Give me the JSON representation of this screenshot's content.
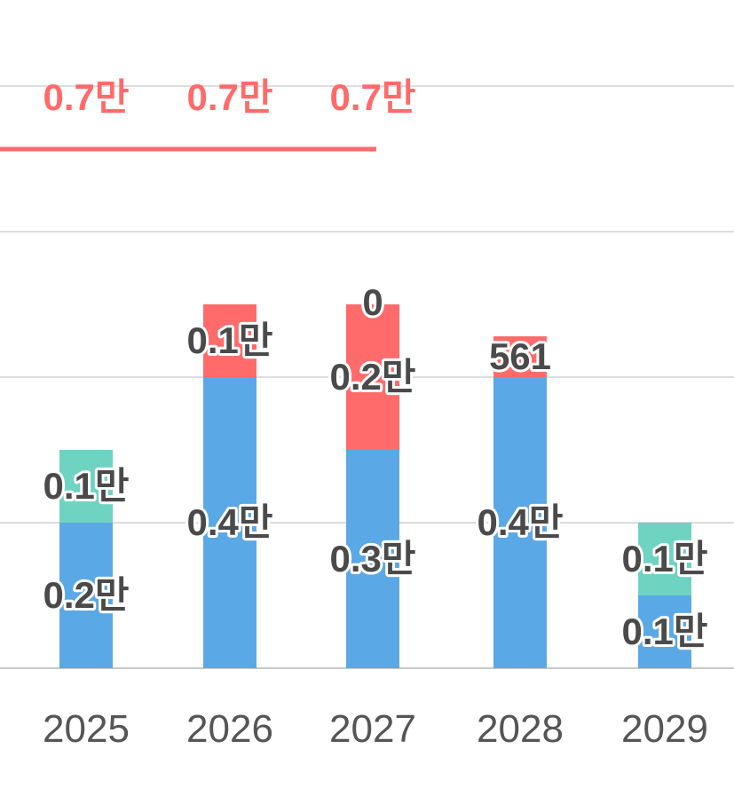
{
  "chart_data": {
    "type": "bar",
    "stacked": true,
    "categories": [
      "2025",
      "2026",
      "2027",
      "2028",
      "2029"
    ],
    "series": [
      {
        "color": "#5aa9e6",
        "values": [
          0.2,
          0.4,
          0.3,
          0.4,
          0.1
        ],
        "labels": [
          "0.2만",
          "0.4만",
          "0.3만",
          "0.4만",
          "0.1만"
        ]
      },
      {
        "color": "#6fd3c2",
        "values": [
          0.1,
          0,
          0,
          0,
          0.1
        ],
        "labels": [
          "0.1만",
          "",
          "",
          "",
          "0.1만"
        ]
      },
      {
        "color": "#ff6b6b",
        "values": [
          0,
          0.1,
          0.2,
          0.0561,
          0
        ],
        "labels": [
          "",
          "0.1만",
          "0.2만",
          "561",
          ""
        ]
      },
      {
        "color": "#ff6b6b",
        "values": [
          0,
          0,
          0,
          0,
          0
        ],
        "labels": [
          "",
          "",
          "0",
          "",
          ""
        ]
      }
    ],
    "line": {
      "color": "#ff6b6b",
      "values": [
        0.7,
        0.7,
        0.7
      ],
      "labels": [
        "0.7만",
        "0.7만",
        "0.7만"
      ]
    },
    "ylim": [
      0,
      0.8
    ],
    "grid": true,
    "legend": "none",
    "title": "",
    "xlabel": "",
    "ylabel": ""
  }
}
